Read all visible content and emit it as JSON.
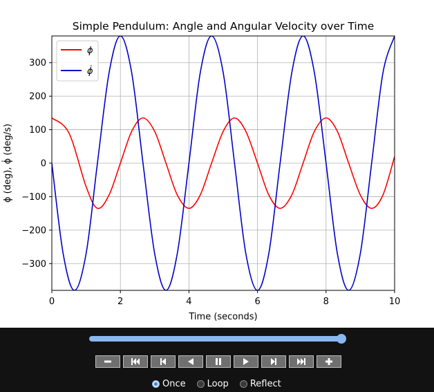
{
  "chart_data": {
    "type": "line",
    "title": "Simple Pendulum: Angle and Angular Velocity over Time",
    "xlabel": "Time (seconds)",
    "ylabel": "ϕ (deg), ϕ̇ (deg/s)",
    "xlim": [
      0,
      10
    ],
    "ylim": [
      -380,
      380
    ],
    "xticks": [
      0,
      2,
      4,
      6,
      8,
      10
    ],
    "yticks": [
      -300,
      -200,
      -100,
      0,
      100,
      200,
      300
    ],
    "xtick_labels": [
      "0",
      "2",
      "4",
      "6",
      "8",
      "10"
    ],
    "ytick_labels": [
      "−300",
      "−200",
      "−100",
      "0",
      "100",
      "200",
      "300"
    ],
    "grid": true,
    "legend": "upper-left",
    "series": [
      {
        "name": "ϕ",
        "color": "#ff0000",
        "x": [
          0,
          0.5,
          1.0,
          1.33,
          1.67,
          2.0,
          2.33,
          2.66,
          3.0,
          3.33,
          3.66,
          4.0,
          4.33,
          4.66,
          5.0,
          5.33,
          5.66,
          6.0,
          6.33,
          6.66,
          7.0,
          7.33,
          7.66,
          8.0,
          8.33,
          8.66,
          9.0,
          9.33,
          9.66,
          10.0
        ],
        "values": [
          135,
          90,
          -70,
          -135,
          -95,
          0,
          95,
          135,
          95,
          0,
          -95,
          -135,
          -95,
          0,
          95,
          135,
          95,
          0,
          -95,
          -135,
          -95,
          0,
          95,
          135,
          95,
          0,
          -95,
          -135,
          -95,
          20
        ]
      },
      {
        "name": "ϕ̇",
        "color": "#0000cc",
        "x": [
          0,
          0.33,
          0.66,
          1.0,
          1.33,
          1.67,
          2.0,
          2.33,
          2.66,
          3.0,
          3.33,
          3.66,
          4.0,
          4.33,
          4.66,
          5.0,
          5.33,
          5.66,
          6.0,
          6.33,
          6.66,
          7.0,
          7.33,
          7.66,
          8.0,
          8.33,
          8.66,
          9.0,
          9.33,
          9.66,
          10.0
        ],
        "values": [
          0,
          -270,
          -380,
          -270,
          0,
          270,
          380,
          270,
          0,
          -270,
          -380,
          -270,
          0,
          270,
          380,
          270,
          0,
          -270,
          -380,
          -270,
          0,
          270,
          380,
          270,
          0,
          -270,
          -380,
          -270,
          0,
          270,
          380
        ]
      }
    ]
  },
  "controls": {
    "slider_value": 1.0,
    "buttons": [
      "minus-icon",
      "skip-to-start-icon",
      "step-back-icon",
      "play-reverse-icon",
      "pause-icon",
      "play-icon",
      "step-forward-icon",
      "skip-to-end-icon",
      "plus-icon"
    ],
    "loop_modes": [
      {
        "label": "Once",
        "checked": true
      },
      {
        "label": "Loop",
        "checked": false
      },
      {
        "label": "Reflect",
        "checked": false
      }
    ]
  }
}
